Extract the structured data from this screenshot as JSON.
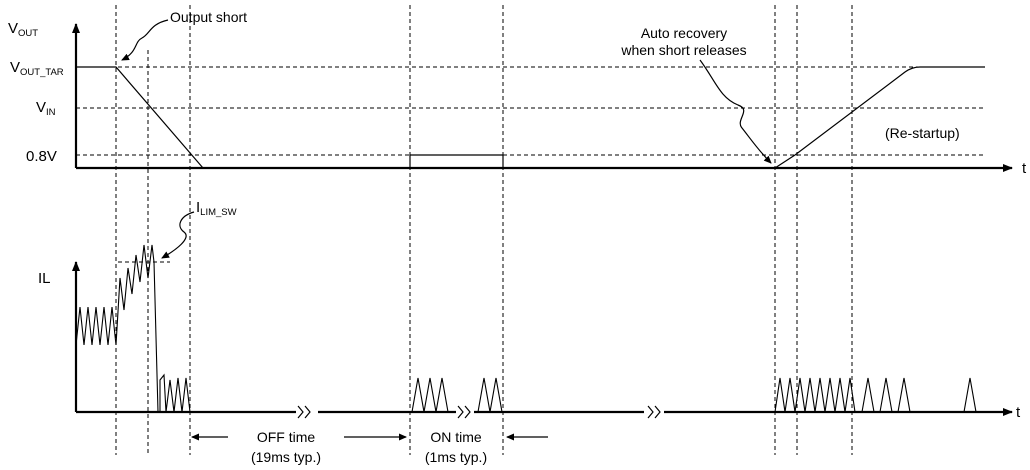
{
  "top_panel": {
    "y_axis_main": "V",
    "y_axis_sub": "OUT",
    "x_axis": "t",
    "levels": {
      "vout_tar_main": "V",
      "vout_tar_sub": "OUT_TAR",
      "vin_main": "V",
      "vin_sub": "IN",
      "v08": "0.8V"
    },
    "annotations": {
      "output_short": "Output short",
      "auto_recovery_line1": "Auto recovery",
      "auto_recovery_line2": "when short releases",
      "restartup": "(Re-startup)"
    }
  },
  "bottom_panel": {
    "y_axis": "IL",
    "x_axis": "t",
    "ilim_main": "I",
    "ilim_sub": "LIM_SW",
    "off_time_label": "OFF time",
    "off_time_typ": "(19ms typ.)",
    "on_time_label": "ON time",
    "on_time_typ": "(1ms typ.)"
  },
  "colors": {
    "line": "#000000",
    "background": "#ffffff"
  }
}
